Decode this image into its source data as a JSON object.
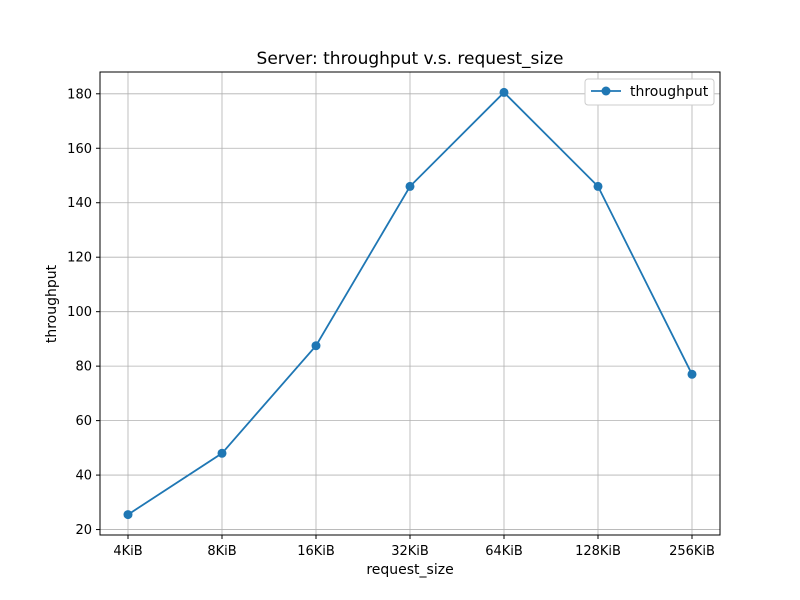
{
  "chart_data": {
    "type": "line",
    "title": "Server: throughput v.s. request_size",
    "xlabel": "request_size",
    "ylabel": "throughput",
    "categories": [
      "4KiB",
      "8KiB",
      "16KiB",
      "32KiB",
      "64KiB",
      "128KiB",
      "256KiB"
    ],
    "series": [
      {
        "name": "throughput",
        "values": [
          25.5,
          48,
          87.5,
          146,
          180.5,
          146,
          77
        ],
        "color": "#1f77b4",
        "marker": "circle"
      }
    ],
    "ylim": [
      18,
      188
    ],
    "yticks": [
      20,
      40,
      60,
      80,
      100,
      120,
      140,
      160,
      180
    ],
    "grid": true,
    "legend_position": "top-right"
  }
}
